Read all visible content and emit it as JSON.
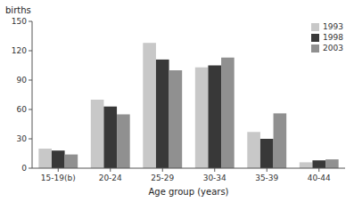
{
  "chart_data": {
    "type": "bar",
    "ylabel": "births",
    "xlabel": "Age group (years)",
    "categories": [
      "15-19(b)",
      "20-24",
      "25-29",
      "30-34",
      "35-39",
      "40-44"
    ],
    "series": [
      {
        "name": "1993",
        "color": "#c8c8c8",
        "values": [
          20,
          70,
          128,
          103,
          37,
          6
        ]
      },
      {
        "name": "1998",
        "color": "#383838",
        "values": [
          18,
          63,
          111,
          105,
          30,
          8
        ]
      },
      {
        "name": "2003",
        "color": "#909090",
        "values": [
          14,
          55,
          100,
          113,
          56,
          9
        ]
      }
    ],
    "ylim": [
      0,
      150
    ],
    "yticks": [
      0,
      30,
      60,
      90,
      120,
      150
    ],
    "grid": false,
    "legend": "upper right"
  }
}
